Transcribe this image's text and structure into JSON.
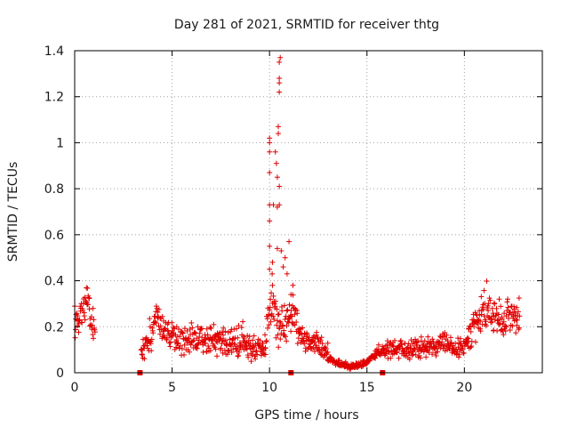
{
  "chart_data": {
    "type": "scatter",
    "title": "Day 281 of 2021, SRMTID for receiver thtg",
    "xlabel": "GPS time / hours",
    "ylabel": "SRMTID / TECUs",
    "xlim": [
      0,
      24
    ],
    "ylim": [
      0,
      1.4
    ],
    "xticks": [
      "0",
      "5",
      "10",
      "15",
      "20"
    ],
    "xtick_values": [
      0,
      5,
      10,
      15,
      20
    ],
    "yticks": [
      "0",
      "0.2",
      "0.4",
      "0.6",
      "0.8",
      "1",
      "1.2",
      "1.4"
    ],
    "ytick_values": [
      0,
      0.2,
      0.4,
      0.6,
      0.8,
      1.0,
      1.2,
      1.4
    ],
    "grid": true,
    "marker_color": "#e00000",
    "marker": "plus",
    "segments": [
      {
        "start": 0.0,
        "end": 1.05,
        "base": [
          [
            0.0,
            0.18
          ],
          [
            0.3,
            0.25
          ],
          [
            0.6,
            0.32
          ],
          [
            0.8,
            0.24
          ],
          [
            1.05,
            0.18
          ]
        ],
        "noise": 0.06
      },
      {
        "start": 3.4,
        "end": 9.8,
        "base": [
          [
            3.4,
            0.1
          ],
          [
            4.0,
            0.16
          ],
          [
            4.2,
            0.25
          ],
          [
            4.6,
            0.17
          ],
          [
            5.5,
            0.14
          ],
          [
            6.5,
            0.15
          ],
          [
            7.5,
            0.14
          ],
          [
            8.3,
            0.13
          ],
          [
            9.0,
            0.11
          ],
          [
            9.8,
            0.1
          ]
        ],
        "noise": 0.05
      },
      {
        "start": 9.8,
        "end": 11.5,
        "base": [
          [
            9.8,
            0.12
          ],
          [
            10.1,
            0.3
          ],
          [
            10.3,
            0.25
          ],
          [
            10.5,
            0.2
          ],
          [
            10.8,
            0.22
          ],
          [
            11.2,
            0.25
          ],
          [
            11.5,
            0.18
          ]
        ],
        "noise": 0.08
      },
      {
        "start": 11.5,
        "end": 13.0,
        "base": [
          [
            11.5,
            0.17
          ],
          [
            12.0,
            0.13
          ],
          [
            12.5,
            0.12
          ],
          [
            13.0,
            0.08
          ]
        ],
        "noise": 0.04
      },
      {
        "start": 13.0,
        "end": 15.6,
        "base": [
          [
            13.0,
            0.06
          ],
          [
            13.5,
            0.04
          ],
          [
            14.0,
            0.03
          ],
          [
            14.5,
            0.03
          ],
          [
            15.0,
            0.05
          ],
          [
            15.6,
            0.09
          ]
        ],
        "noise": 0.012
      },
      {
        "start": 15.6,
        "end": 20.2,
        "base": [
          [
            15.6,
            0.09
          ],
          [
            16.5,
            0.1
          ],
          [
            17.5,
            0.11
          ],
          [
            18.5,
            0.11
          ],
          [
            19.0,
            0.14
          ],
          [
            19.5,
            0.1
          ],
          [
            20.2,
            0.13
          ]
        ],
        "noise": 0.035
      },
      {
        "start": 20.2,
        "end": 22.85,
        "base": [
          [
            20.2,
            0.14
          ],
          [
            20.6,
            0.22
          ],
          [
            21.0,
            0.28
          ],
          [
            21.5,
            0.24
          ],
          [
            22.0,
            0.23
          ],
          [
            22.4,
            0.26
          ],
          [
            22.85,
            0.22
          ]
        ],
        "noise": 0.06
      }
    ],
    "spikes": [
      [
        10.0,
        0.45
      ],
      [
        10.0,
        0.55
      ],
      [
        10.0,
        0.66
      ],
      [
        10.0,
        0.73
      ],
      [
        10.0,
        0.87
      ],
      [
        10.0,
        0.96
      ],
      [
        10.0,
        1.0
      ],
      [
        10.0,
        1.02
      ],
      [
        10.15,
        0.38
      ],
      [
        10.15,
        0.48
      ],
      [
        10.2,
        0.73
      ],
      [
        10.3,
        0.96
      ],
      [
        10.35,
        0.91
      ],
      [
        10.4,
        0.85
      ],
      [
        10.4,
        0.72
      ],
      [
        10.4,
        0.54
      ],
      [
        10.45,
        1.04
      ],
      [
        10.45,
        1.07
      ],
      [
        10.5,
        0.81
      ],
      [
        10.5,
        0.73
      ],
      [
        10.5,
        1.22
      ],
      [
        10.5,
        1.26
      ],
      [
        10.5,
        1.28
      ],
      [
        10.5,
        1.35
      ],
      [
        10.55,
        1.37
      ],
      [
        10.6,
        0.53
      ],
      [
        10.7,
        0.46
      ],
      [
        10.8,
        0.5
      ],
      [
        10.9,
        0.43
      ],
      [
        11.0,
        0.57
      ],
      [
        11.1,
        0.34
      ],
      [
        11.2,
        0.38
      ]
    ],
    "zero_markers": [
      3.35,
      11.1,
      15.8
    ]
  }
}
